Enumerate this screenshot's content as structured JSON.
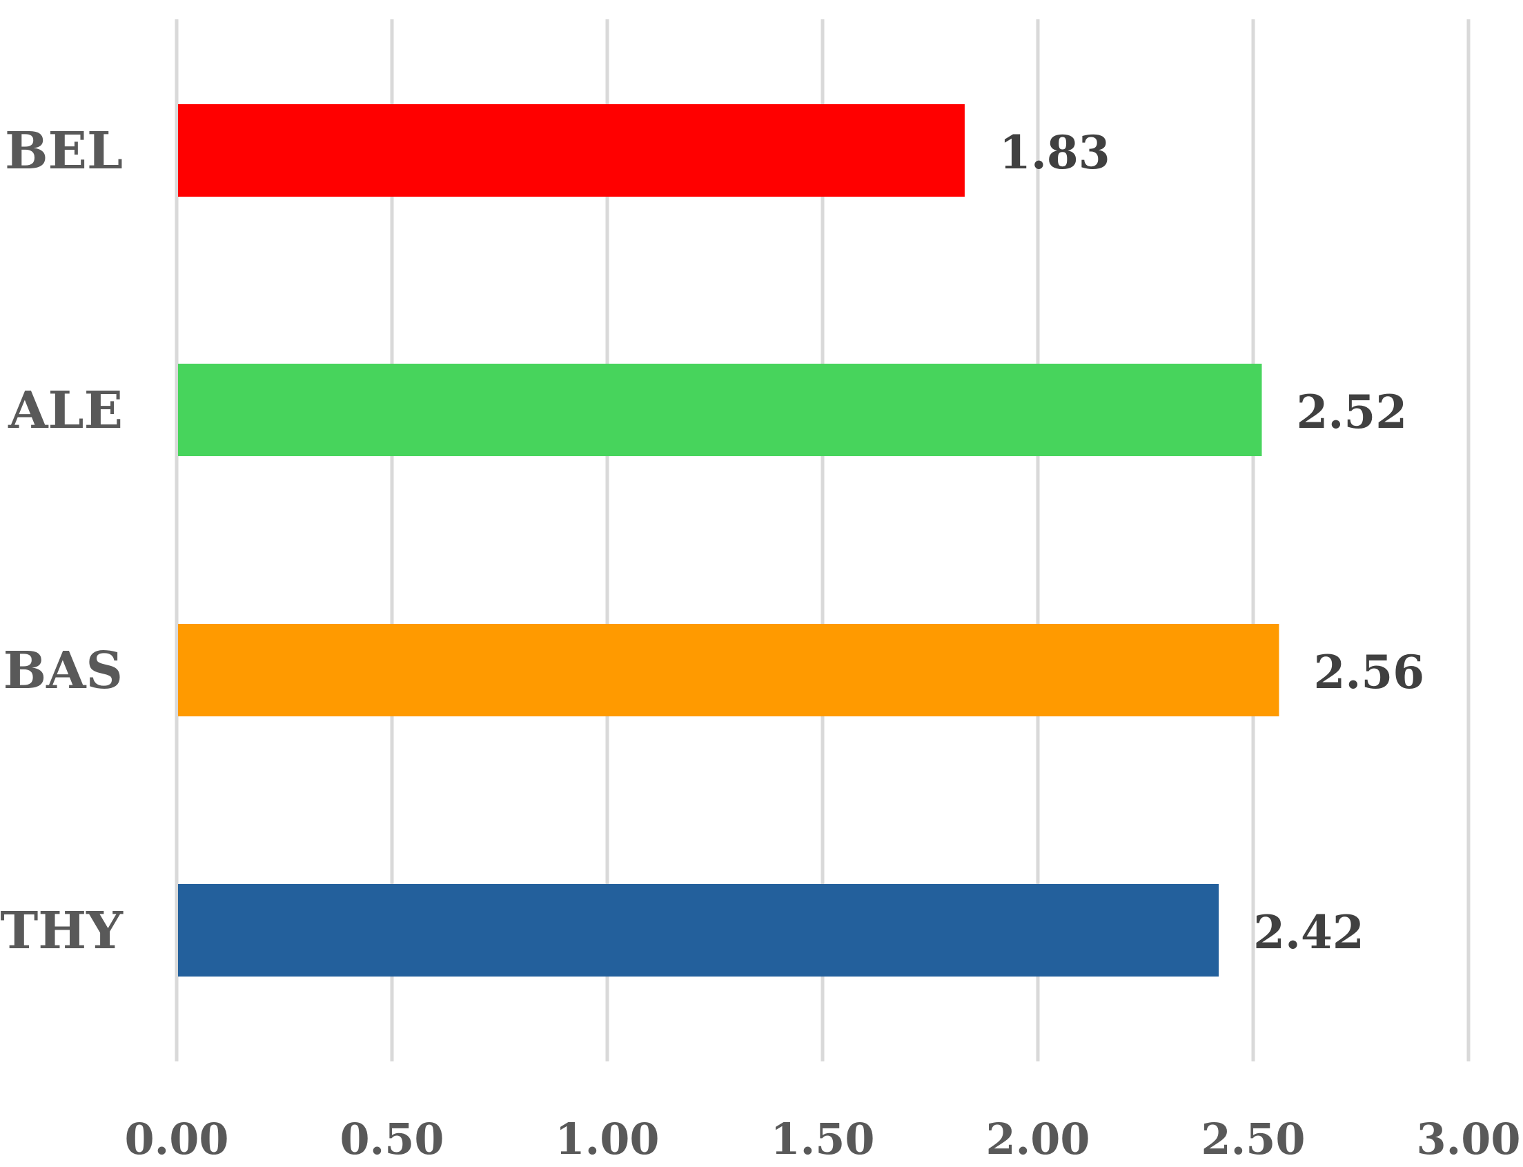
{
  "chart_data": {
    "type": "bar",
    "orientation": "horizontal",
    "categories": [
      "BEL",
      "ALE",
      "BAS",
      "THY"
    ],
    "values": [
      1.83,
      2.52,
      2.56,
      2.42
    ],
    "data_labels": [
      "1.83",
      "2.52",
      "2.56",
      "2.42"
    ],
    "colors": [
      "#ff0000",
      "#47d45c",
      "#ff9a00",
      "#23609c"
    ],
    "xlim": [
      0,
      3.0
    ],
    "x_ticks": [
      0,
      0.5,
      1.0,
      1.5,
      2.0,
      2.5,
      3.0
    ],
    "x_tick_labels": [
      "0.00",
      "0.50",
      "1.00",
      "1.50",
      "2.00",
      "2.50",
      "3.00"
    ],
    "grid": true,
    "grid_color": "#d9d9d9",
    "label_color": "#595959",
    "data_label_color": "#404040",
    "title": "",
    "xlabel": "",
    "ylabel": ""
  }
}
